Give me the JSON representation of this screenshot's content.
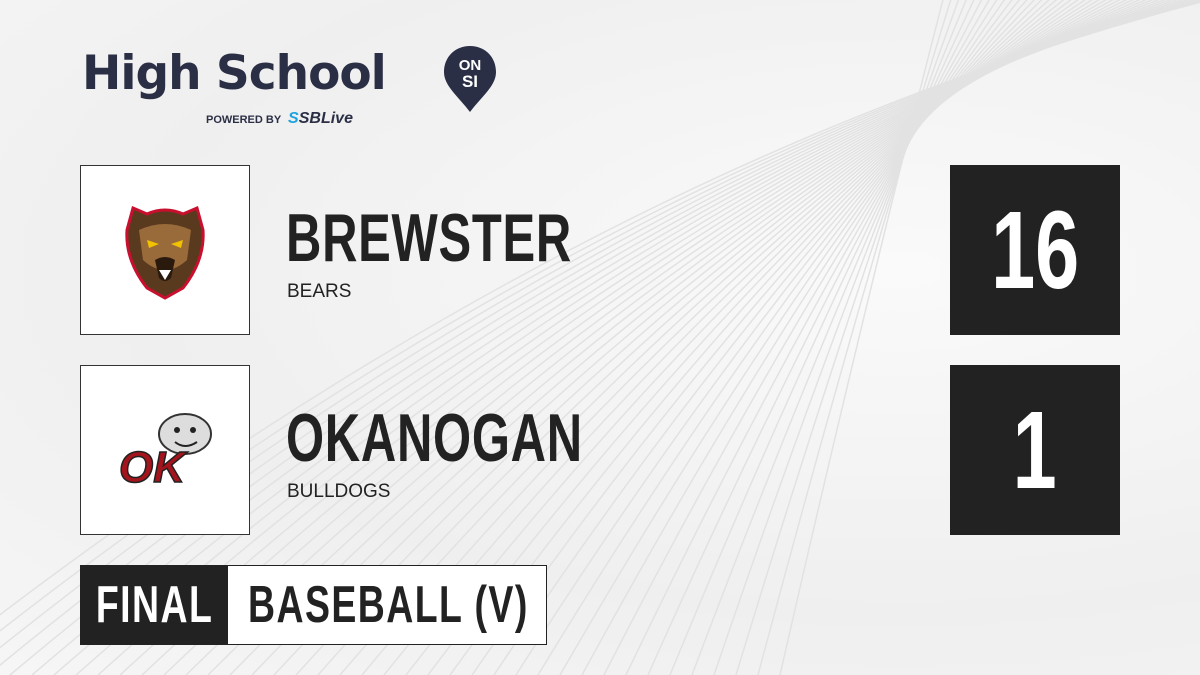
{
  "brand": {
    "title": "High School",
    "badge_top": "ON",
    "badge_bottom": "SI",
    "powered_by": "POWERED BY",
    "partner_prefix": "S",
    "partner": "SBLive"
  },
  "teams": [
    {
      "name": "BREWSTER",
      "mascot": "BEARS",
      "score": "16",
      "logo_icon": "bear-logo-icon"
    },
    {
      "name": "OKANOGAN",
      "mascot": "BULLDOGS",
      "score": "1",
      "logo_icon": "bulldog-ok-logo-icon"
    }
  ],
  "status": "FINAL",
  "sport": "BASEBALL (V)",
  "colors": {
    "dark": "#222222",
    "brand_navy": "#2b2f45",
    "sblive_blue": "#1fa3e0",
    "okanogan_red": "#a3141c"
  }
}
